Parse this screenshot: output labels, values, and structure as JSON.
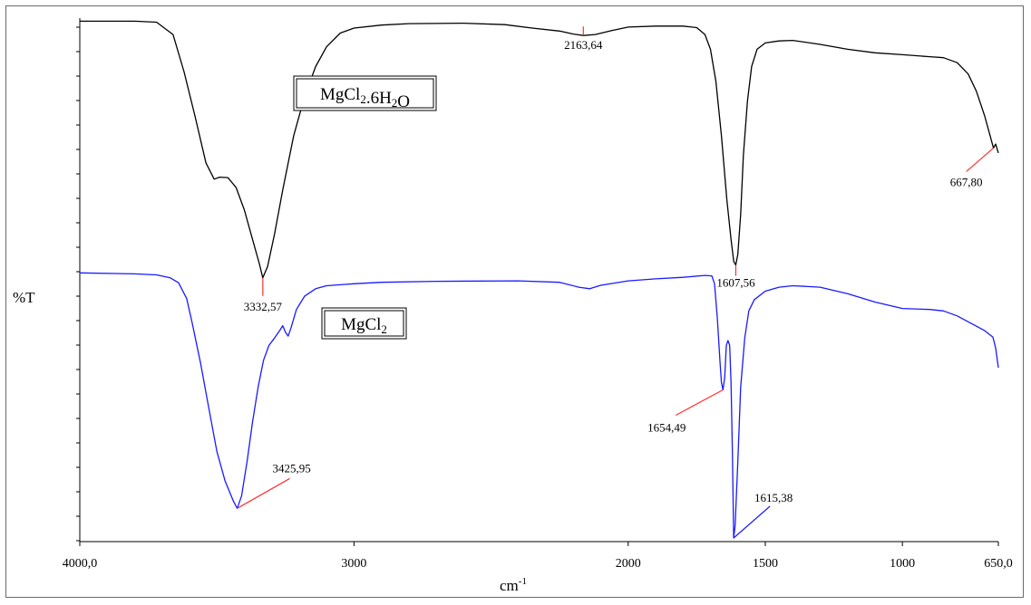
{
  "chart_data": {
    "type": "line",
    "xlabel": "cm-1",
    "ylabel": "%T",
    "x_tick_labels": [
      "4000,0",
      "3000",
      "2000",
      "1500",
      "1000",
      "650,0"
    ],
    "x_ticks": [
      4000,
      3000,
      2000,
      1500,
      1000,
      650
    ],
    "xlim": [
      4000,
      650
    ],
    "x_reversed": true,
    "ylim": [
      0,
      100
    ],
    "grid": false,
    "colors": {
      "series1": "#000000",
      "series2": "#1a1aff",
      "annotation": "#ff3030"
    },
    "series": [
      {
        "name": "MgCl2.6H2O",
        "color": "#000000",
        "points": [
          [
            4000,
            99.2
          ],
          [
            3800,
            99.2
          ],
          [
            3720,
            99.0
          ],
          [
            3660,
            96.5
          ],
          [
            3620,
            89
          ],
          [
            3580,
            80
          ],
          [
            3540,
            70.5
          ],
          [
            3510,
            67.2
          ],
          [
            3490,
            67.6
          ],
          [
            3460,
            67.5
          ],
          [
            3430,
            65.5
          ],
          [
            3400,
            61
          ],
          [
            3370,
            55
          ],
          [
            3345,
            50
          ],
          [
            3332.57,
            47.2
          ],
          [
            3315,
            49.5
          ],
          [
            3290,
            56
          ],
          [
            3260,
            65
          ],
          [
            3220,
            76
          ],
          [
            3180,
            84
          ],
          [
            3140,
            90
          ],
          [
            3100,
            94
          ],
          [
            3050,
            96.8
          ],
          [
            3000,
            97.8
          ],
          [
            2900,
            98.4
          ],
          [
            2800,
            98.7
          ],
          [
            2600,
            98.8
          ],
          [
            2450,
            98.5
          ],
          [
            2350,
            97.8
          ],
          [
            2250,
            97.2
          ],
          [
            2200,
            96.6
          ],
          [
            2163.64,
            96.3
          ],
          [
            2120,
            96.5
          ],
          [
            2060,
            97.3
          ],
          [
            2000,
            98.0
          ],
          [
            1900,
            98.2
          ],
          [
            1800,
            98.2
          ],
          [
            1750,
            97.9
          ],
          [
            1720,
            96.5
          ],
          [
            1700,
            93.5
          ],
          [
            1680,
            87
          ],
          [
            1660,
            76
          ],
          [
            1640,
            63
          ],
          [
            1625,
            55
          ],
          [
            1615,
            50.5
          ],
          [
            1607.56,
            49.8
          ],
          [
            1600,
            52
          ],
          [
            1590,
            60
          ],
          [
            1580,
            72
          ],
          [
            1565,
            83
          ],
          [
            1550,
            90
          ],
          [
            1530,
            93.5
          ],
          [
            1500,
            94.8
          ],
          [
            1450,
            95.2
          ],
          [
            1400,
            95.3
          ],
          [
            1300,
            94.5
          ],
          [
            1200,
            93.5
          ],
          [
            1100,
            92.8
          ],
          [
            1000,
            92.4
          ],
          [
            900,
            92.0
          ],
          [
            850,
            91.8
          ],
          [
            800,
            90.8
          ],
          [
            760,
            88.5
          ],
          [
            730,
            85
          ],
          [
            700,
            80
          ],
          [
            680,
            76
          ],
          [
            667.8,
            73.5
          ],
          [
            660,
            74.3
          ],
          [
            650,
            72.5
          ]
        ],
        "label": "MgCl2.6H2O"
      },
      {
        "name": "MgCl2",
        "color": "#1a1aff",
        "points": [
          [
            4000,
            48.2
          ],
          [
            3800,
            48.0
          ],
          [
            3720,
            47.8
          ],
          [
            3670,
            47.2
          ],
          [
            3640,
            46.2
          ],
          [
            3610,
            43
          ],
          [
            3590,
            38
          ],
          [
            3560,
            30
          ],
          [
            3530,
            21
          ],
          [
            3500,
            12
          ],
          [
            3470,
            6
          ],
          [
            3440,
            2
          ],
          [
            3425.95,
            0.5
          ],
          [
            3410,
            3
          ],
          [
            3390,
            10
          ],
          [
            3370,
            18
          ],
          [
            3350,
            25
          ],
          [
            3330,
            30.5
          ],
          [
            3310,
            33.5
          ],
          [
            3290,
            35
          ],
          [
            3270,
            36.6
          ],
          [
            3260,
            37.5
          ],
          [
            3250,
            36.2
          ],
          [
            3240,
            35.4
          ],
          [
            3230,
            37
          ],
          [
            3210,
            40.8
          ],
          [
            3180,
            43.5
          ],
          [
            3140,
            45
          ],
          [
            3100,
            45.6
          ],
          [
            3000,
            46.0
          ],
          [
            2900,
            46.3
          ],
          [
            2700,
            46.5
          ],
          [
            2400,
            46.6
          ],
          [
            2250,
            46.3
          ],
          [
            2180,
            45.3
          ],
          [
            2140,
            45.0
          ],
          [
            2100,
            45.7
          ],
          [
            2000,
            46.6
          ],
          [
            1900,
            47.0
          ],
          [
            1800,
            47.3
          ],
          [
            1720,
            47.7
          ],
          [
            1695,
            47.6
          ],
          [
            1685,
            46
          ],
          [
            1675,
            39
          ],
          [
            1665,
            30
          ],
          [
            1660,
            26
          ],
          [
            1654.49,
            24.5
          ],
          [
            1648,
            27
          ],
          [
            1642,
            33.5
          ],
          [
            1636,
            34.5
          ],
          [
            1630,
            33.5
          ],
          [
            1625,
            26
          ],
          [
            1620,
            12
          ],
          [
            1615.38,
            -5.5
          ],
          [
            1610,
            -3
          ],
          [
            1600,
            10
          ],
          [
            1590,
            25
          ],
          [
            1575,
            35
          ],
          [
            1560,
            40.5
          ],
          [
            1540,
            42.8
          ],
          [
            1500,
            44.5
          ],
          [
            1450,
            45.3
          ],
          [
            1400,
            45.6
          ],
          [
            1300,
            45.3
          ],
          [
            1200,
            44.0
          ],
          [
            1100,
            42.3
          ],
          [
            1000,
            41.0
          ],
          [
            900,
            40.8
          ],
          [
            850,
            40.5
          ],
          [
            800,
            39.5
          ],
          [
            750,
            38
          ],
          [
            700,
            36.5
          ],
          [
            670,
            35.2
          ],
          [
            660,
            33
          ],
          [
            650,
            29
          ]
        ],
        "label": "MgCl2"
      }
    ],
    "annotations": [
      {
        "text": "3332,57",
        "x": 3332.57,
        "series": 0
      },
      {
        "text": "2163,64",
        "x": 2163.64,
        "series": 0
      },
      {
        "text": "1607,56",
        "x": 1607.56,
        "series": 0
      },
      {
        "text": "667,80",
        "x": 667.8,
        "series": 0
      },
      {
        "text": "3425,95",
        "x": 3425.95,
        "series": 1
      },
      {
        "text": "1654,49",
        "x": 1654.49,
        "series": 1
      },
      {
        "text": "1615,38",
        "x": 1615.38,
        "series": 1
      }
    ],
    "legend_boxes": [
      {
        "main": "MgCl",
        "parts": [
          [
            "MgCl",
            ""
          ],
          [
            "2",
            "sub"
          ],
          [
            ".6H",
            ""
          ],
          [
            "2",
            "sub"
          ],
          [
            "O",
            ""
          ]
        ]
      },
      {
        "main": "MgCl",
        "parts": [
          [
            "MgCl",
            ""
          ],
          [
            "2",
            "sub"
          ]
        ]
      }
    ]
  }
}
